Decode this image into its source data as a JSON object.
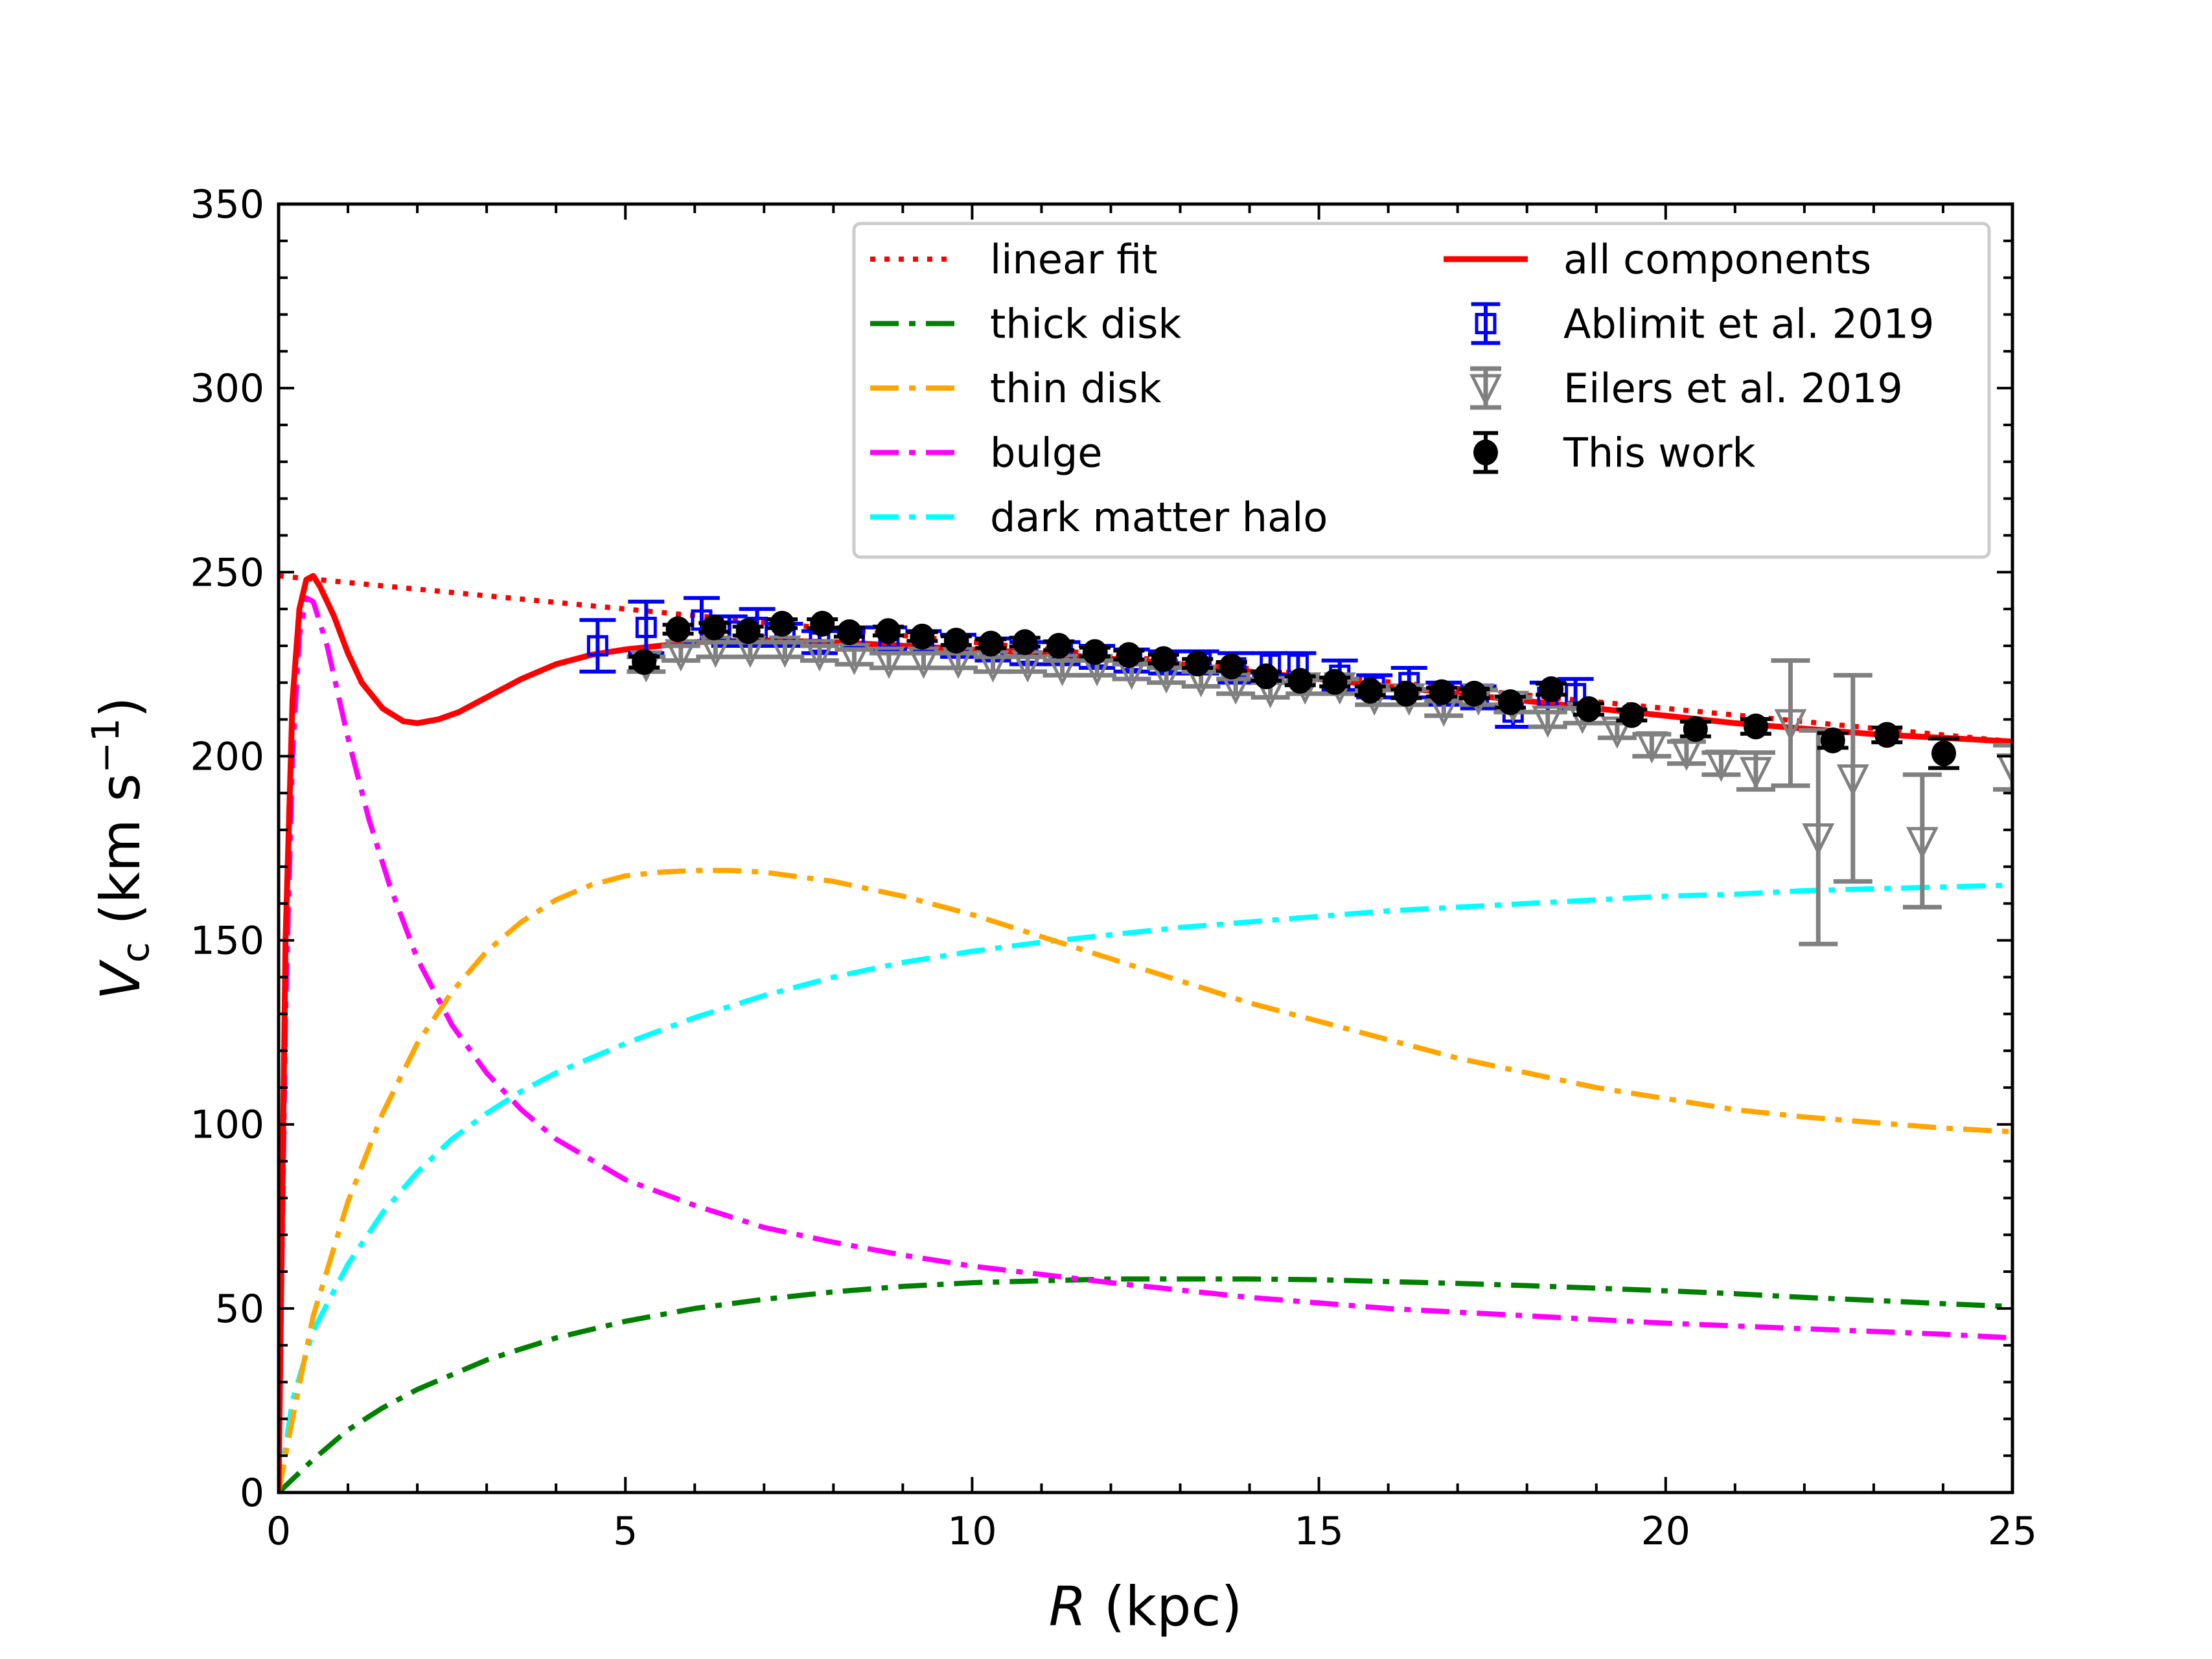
{
  "chart_data": {
    "type": "line",
    "title": "",
    "xlabel": "R (kpc)",
    "xlabel_var": "R",
    "xlabel_unit": " (kpc)",
    "ylabel": "Vc (km s^-1)",
    "ylabel_var": "V",
    "ylabel_sub": "c",
    "ylabel_unit_pre": " (km s",
    "ylabel_unit_sup": "−1",
    "ylabel_unit_post": ")",
    "xlim": [
      0,
      25
    ],
    "ylim": [
      0,
      350
    ],
    "xticks": [
      0,
      5,
      10,
      15,
      20,
      25
    ],
    "yticks": [
      0,
      50,
      100,
      150,
      200,
      250,
      300,
      350
    ],
    "xtick_labels": [
      "0",
      "5",
      "10",
      "15",
      "20",
      "25"
    ],
    "ytick_labels": [
      "0",
      "50",
      "100",
      "150",
      "200",
      "250",
      "300",
      "350"
    ],
    "x_minor_step": 1,
    "y_minor_step": 10,
    "grid": false,
    "legend_position": "top-right",
    "legend": [
      {
        "label": "linear fit",
        "color": "#ff0000",
        "style": "dotted"
      },
      {
        "label": "thick disk",
        "color": "#008000",
        "style": "dashdot"
      },
      {
        "label": "thin disk",
        "color": "#ffa500",
        "style": "dashdot"
      },
      {
        "label": "bulge",
        "color": "#ff00ff",
        "style": "dashdot"
      },
      {
        "label": "dark matter halo",
        "color": "#00ffff",
        "style": "dashdot"
      },
      {
        "label": "all components",
        "color": "#ff0000",
        "style": "solid"
      },
      {
        "label": "Ablimit et al. 2019",
        "color": "#0000ff",
        "style": "open-square-errorbar"
      },
      {
        "label": "Eilers et al. 2019",
        "color": "#808080",
        "style": "open-triangle-down-errorbar"
      },
      {
        "label": "This work",
        "color": "#000000",
        "style": "filled-circle-errorbar"
      }
    ],
    "lines": [
      {
        "name": "linear fit",
        "color": "#ff0000",
        "style": "dotted",
        "x": [
          0,
          25
        ],
        "y": [
          249,
          204
        ]
      },
      {
        "name": "all components",
        "color": "#ff0000",
        "style": "solid",
        "x": [
          0,
          0.1,
          0.2,
          0.3,
          0.4,
          0.5,
          0.6,
          0.8,
          1.0,
          1.2,
          1.5,
          1.8,
          2.0,
          2.3,
          2.6,
          3.0,
          3.5,
          4.0,
          4.5,
          5.0,
          5.5,
          6.0,
          7.0,
          8.0,
          9.0,
          10.0,
          11.0,
          12.0,
          13.0,
          14.0,
          15.0,
          16.0,
          17.0,
          18.0,
          19.0,
          20.0,
          21.0,
          22.0,
          23.0,
          24.0,
          25.0
        ],
        "y": [
          0,
          150,
          215,
          240,
          248,
          249,
          246,
          238,
          228,
          220,
          213,
          209.5,
          209,
          210,
          212,
          216,
          221,
          225,
          227.5,
          229,
          230,
          231,
          231.5,
          231,
          230,
          229,
          228,
          226.5,
          225,
          223,
          221,
          219,
          217,
          215,
          213,
          211,
          209,
          207.5,
          206,
          205,
          204
        ]
      },
      {
        "name": "bulge",
        "color": "#ff00ff",
        "style": "dashdot",
        "x": [
          0,
          0.1,
          0.2,
          0.3,
          0.4,
          0.5,
          0.7,
          1.0,
          1.3,
          1.6,
          2.0,
          2.5,
          3.0,
          3.5,
          4.0,
          5.0,
          6.0,
          7.0,
          8.0,
          9.0,
          10.0,
          12.0,
          14.0,
          16.0,
          18.0,
          20.0,
          22.0,
          24.0,
          25.0
        ],
        "y": [
          0,
          130,
          200,
          233,
          243,
          242,
          230,
          205,
          183,
          165,
          145,
          127,
          114,
          104,
          96,
          85,
          78,
          72,
          68,
          64.5,
          61.5,
          57,
          53,
          50,
          48,
          46,
          44.5,
          43,
          42
        ]
      },
      {
        "name": "thin disk",
        "color": "#ffa500",
        "style": "dashdot",
        "x": [
          0,
          0.2,
          0.5,
          1.0,
          1.5,
          2.0,
          2.5,
          3.0,
          3.5,
          4.0,
          4.5,
          5.0,
          5.5,
          6.0,
          6.5,
          7.0,
          8.0,
          9.0,
          10.0,
          11.0,
          12.0,
          13.0,
          14.0,
          15.0,
          16.0,
          17.0,
          18.0,
          19.0,
          20.0,
          21.0,
          22.0,
          23.0,
          24.0,
          25.0
        ],
        "y": [
          0,
          20,
          48,
          79,
          103,
          122,
          136,
          147,
          155,
          161,
          165,
          167.5,
          168.5,
          169,
          169,
          168.5,
          166,
          162,
          157,
          151,
          145,
          139,
          133,
          128,
          123,
          118,
          114,
          110,
          107,
          104,
          102,
          100.5,
          99,
          98
        ]
      },
      {
        "name": "dark matter halo",
        "color": "#00ffff",
        "style": "dashdot",
        "x": [
          0,
          0.2,
          0.5,
          1.0,
          1.5,
          2.0,
          2.5,
          3.0,
          3.5,
          4.0,
          5.0,
          6.0,
          7.0,
          8.0,
          9.0,
          10.0,
          11.0,
          12.0,
          13.0,
          14.0,
          15.0,
          16.0,
          17.0,
          18.0,
          19.0,
          20.0,
          21.0,
          22.0,
          23.0,
          24.0,
          25.0
        ],
        "y": [
          0,
          25,
          44,
          62,
          76,
          87,
          96,
          103,
          109,
          114,
          122,
          129,
          135,
          140,
          144,
          147,
          149.5,
          151.5,
          153.5,
          155,
          156.5,
          158,
          159,
          160,
          161,
          162,
          162.5,
          163.5,
          164,
          164.5,
          165
        ]
      },
      {
        "name": "thick disk",
        "color": "#008000",
        "style": "dashdot",
        "x": [
          0,
          0.5,
          1.0,
          1.5,
          2.0,
          3.0,
          4.0,
          5.0,
          6.0,
          7.0,
          8.0,
          9.0,
          10.0,
          11.0,
          12.0,
          13.0,
          14.0,
          15.0,
          16.0,
          17.0,
          18.0,
          19.0,
          20.0,
          21.0,
          22.0,
          23.0,
          24.0,
          25.0
        ],
        "y": [
          0,
          9,
          17,
          23,
          28,
          36,
          42,
          46.5,
          50,
          52.5,
          54.5,
          56,
          57,
          57.5,
          58,
          58,
          58,
          57.8,
          57.3,
          56.8,
          56.2,
          55.5,
          54.8,
          54,
          53,
          52.2,
          51.3,
          50.5
        ]
      }
    ],
    "series": [
      {
        "name": "Ablimit et al. 2019",
        "marker": "open-square",
        "color": "#0000ff",
        "x": [
          4.6,
          5.3,
          6.1,
          6.5,
          6.9,
          7.3,
          7.8,
          8.3,
          8.8,
          9.3,
          9.8,
          10.3,
          10.8,
          11.3,
          11.8,
          12.3,
          12.8,
          13.3,
          13.8,
          14.3,
          14.7,
          15.3,
          15.8,
          16.3,
          16.8,
          17.3,
          17.8,
          18.3,
          18.7
        ],
        "y": [
          230,
          235,
          237,
          234,
          235,
          233,
          231,
          232,
          232,
          231,
          230,
          229,
          228,
          228,
          227,
          226,
          225.5,
          225.5,
          224,
          225,
          225,
          222,
          219,
          220,
          217,
          216,
          212,
          216,
          217
        ],
        "err": [
          7,
          7,
          6,
          4,
          5,
          3,
          3,
          3,
          3,
          3,
          3,
          3,
          3,
          3,
          3,
          3,
          3,
          3,
          4,
          3,
          3,
          4,
          3,
          4,
          3,
          3,
          4,
          4,
          4
        ]
      },
      {
        "name": "Eilers et al. 2019",
        "marker": "open-triangle-down",
        "color": "#808080",
        "x": [
          5.3,
          5.8,
          6.3,
          6.8,
          7.3,
          7.8,
          8.3,
          8.8,
          9.3,
          9.8,
          10.3,
          10.8,
          11.3,
          11.8,
          12.3,
          12.8,
          13.3,
          13.8,
          14.3,
          14.8,
          15.3,
          15.8,
          16.3,
          16.8,
          17.3,
          17.8,
          18.3,
          18.8,
          19.3,
          19.8,
          20.3,
          20.8,
          21.3,
          21.8,
          22.2,
          22.7,
          23.7,
          25.0
        ],
        "y": [
          225,
          228,
          229,
          229,
          229,
          228,
          227,
          226,
          226,
          226,
          225,
          225,
          224,
          224,
          223,
          222,
          221,
          219,
          218,
          219,
          219,
          216,
          216,
          213,
          216,
          214,
          210,
          211,
          207,
          203,
          201,
          198,
          196,
          209,
          178,
          194,
          177,
          197
        ],
        "err": [
          2,
          2,
          2,
          2,
          2,
          2,
          2,
          2,
          2,
          2,
          2,
          2,
          2,
          2,
          2,
          2,
          2,
          2,
          2,
          2,
          2,
          2,
          2,
          2,
          2,
          2,
          2,
          2,
          2,
          3,
          3,
          3,
          5,
          17,
          29,
          28,
          18,
          6
        ]
      },
      {
        "name": "This work",
        "marker": "filled-circle",
        "color": "#000000",
        "x": [
          5.27,
          5.76,
          6.28,
          6.77,
          7.26,
          7.84,
          8.23,
          8.79,
          9.28,
          9.77,
          10.27,
          10.76,
          11.25,
          11.77,
          12.26,
          12.76,
          13.25,
          13.74,
          14.24,
          14.73,
          15.23,
          15.74,
          16.26,
          16.77,
          17.24,
          17.76,
          18.35,
          18.89,
          19.51,
          20.43,
          21.3,
          22.41,
          23.19,
          24.01
        ],
        "y": [
          225.6,
          234.5,
          235.0,
          234.0,
          236.0,
          236.0,
          233.7,
          234.0,
          232.5,
          231.4,
          230.6,
          231.0,
          230.0,
          228.3,
          227.5,
          226.4,
          225.2,
          224.4,
          221.7,
          220.5,
          220.2,
          217.8,
          217.0,
          217.4,
          217.0,
          214.7,
          218.2,
          212.8,
          211.2,
          207.4,
          208.1,
          204.3,
          205.8,
          200.8
        ],
        "err": [
          1.5,
          1.2,
          1.2,
          1.2,
          1.2,
          1.2,
          1.2,
          1.2,
          1.2,
          1.2,
          1.2,
          1.2,
          1.2,
          1.2,
          1.2,
          1.2,
          1.2,
          1.2,
          1.2,
          1.2,
          1.2,
          1.2,
          1.2,
          1.2,
          1.2,
          1.5,
          1.5,
          1.5,
          1.5,
          2,
          2,
          2,
          2,
          4
        ]
      }
    ]
  }
}
